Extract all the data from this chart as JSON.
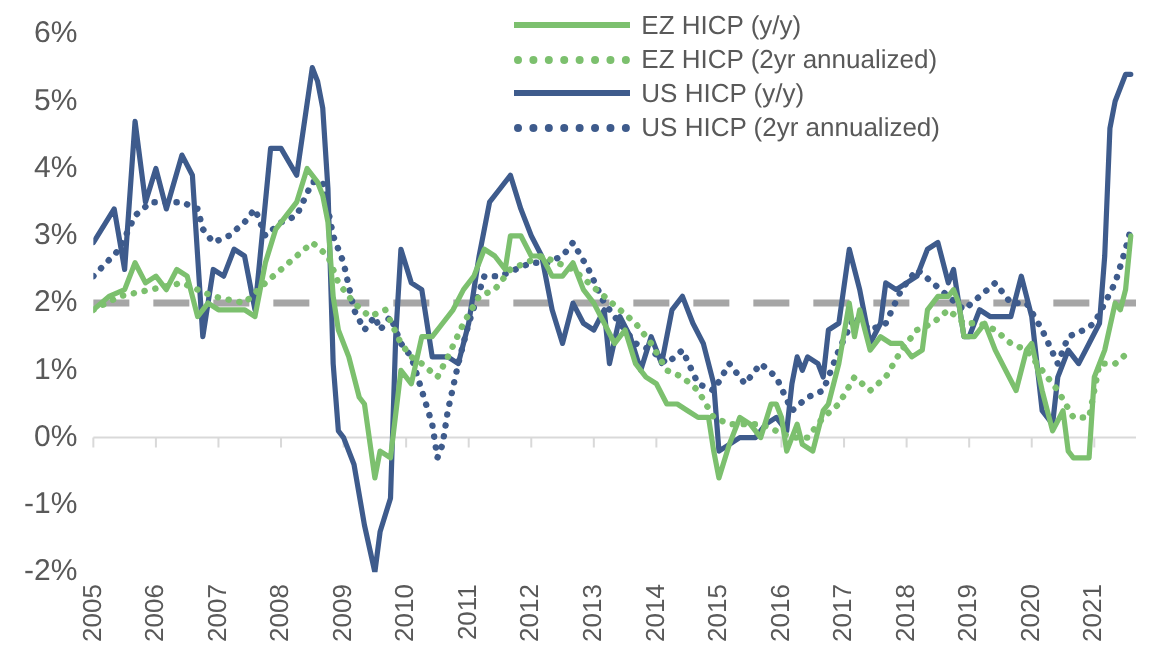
{
  "chart_data": {
    "type": "line",
    "xlim": [
      "2005-01",
      "2021-09"
    ],
    "ylim": [
      -2,
      6
    ],
    "xticks": [
      "2005",
      "2006",
      "2007",
      "2008",
      "2009",
      "2010",
      "2011",
      "2012",
      "2013",
      "2014",
      "2015",
      "2016",
      "2017",
      "2018",
      "2019",
      "2020",
      "2021"
    ],
    "yticks": [
      {
        "value": -2,
        "label": "-2%"
      },
      {
        "value": -1,
        "label": "-1%"
      },
      {
        "value": 0,
        "label": "0%"
      },
      {
        "value": 1,
        "label": "1%"
      },
      {
        "value": 2,
        "label": "2%"
      },
      {
        "value": 3,
        "label": "3%"
      },
      {
        "value": 4,
        "label": "4%"
      },
      {
        "value": 5,
        "label": "5%"
      },
      {
        "value": 6,
        "label": "6%"
      }
    ],
    "grid": false,
    "legend": "top right",
    "marker": "none",
    "ref_lines": [
      {
        "axis": "y",
        "value": 2,
        "color": "#a6a6a6",
        "line_style": "dashed"
      }
    ],
    "series": [
      {
        "name": "EZ HICP (y/y)",
        "color": "#7cc06e",
        "line_style": "solid",
        "x": [
          "2005-01",
          "2005-04",
          "2005-07",
          "2005-09",
          "2005-11",
          "2006-01",
          "2006-03",
          "2006-05",
          "2006-07",
          "2006-09",
          "2006-11",
          "2007-01",
          "2007-04",
          "2007-06",
          "2007-08",
          "2007-10",
          "2007-12",
          "2008-02",
          "2008-04",
          "2008-06",
          "2008-08",
          "2008-09",
          "2008-10",
          "2008-11",
          "2008-12",
          "2009-02",
          "2009-04",
          "2009-05",
          "2009-07",
          "2009-08",
          "2009-10",
          "2009-12",
          "2010-02",
          "2010-04",
          "2010-06",
          "2010-08",
          "2010-10",
          "2010-12",
          "2011-02",
          "2011-04",
          "2011-06",
          "2011-08",
          "2011-09",
          "2011-11",
          "2012-01",
          "2012-03",
          "2012-05",
          "2012-07",
          "2012-09",
          "2012-11",
          "2013-01",
          "2013-03",
          "2013-05",
          "2013-07",
          "2013-09",
          "2013-11",
          "2014-01",
          "2014-03",
          "2014-05",
          "2014-07",
          "2014-09",
          "2014-11",
          "2014-12",
          "2015-01",
          "2015-03",
          "2015-05",
          "2015-07",
          "2015-09",
          "2015-11",
          "2015-12",
          "2016-01",
          "2016-02",
          "2016-04",
          "2016-05",
          "2016-07",
          "2016-09",
          "2016-10",
          "2016-12",
          "2017-02",
          "2017-03",
          "2017-04",
          "2017-06",
          "2017-08",
          "2017-10",
          "2017-12",
          "2018-02",
          "2018-04",
          "2018-05",
          "2018-07",
          "2018-09",
          "2018-10",
          "2018-11",
          "2018-12",
          "2019-02",
          "2019-04",
          "2019-06",
          "2019-08",
          "2019-10",
          "2019-12",
          "2020-01",
          "2020-03",
          "2020-05",
          "2020-07",
          "2020-08",
          "2020-09",
          "2020-12",
          "2021-01",
          "2021-03",
          "2021-05",
          "2021-06",
          "2021-07",
          "2021-08"
        ],
        "values": [
          1.9,
          2.1,
          2.2,
          2.6,
          2.3,
          2.4,
          2.2,
          2.5,
          2.4,
          1.8,
          2.0,
          1.9,
          1.9,
          1.9,
          1.8,
          2.6,
          3.1,
          3.3,
          3.5,
          4.0,
          3.8,
          3.6,
          3.2,
          2.1,
          1.6,
          1.2,
          0.6,
          0.5,
          -0.6,
          -0.2,
          -0.3,
          1.0,
          0.8,
          1.5,
          1.5,
          1.7,
          1.9,
          2.2,
          2.4,
          2.8,
          2.7,
          2.5,
          3.0,
          3.0,
          2.7,
          2.7,
          2.4,
          2.4,
          2.6,
          2.2,
          2.0,
          1.7,
          1.4,
          1.6,
          1.1,
          0.9,
          0.8,
          0.5,
          0.5,
          0.4,
          0.3,
          0.3,
          -0.2,
          -0.6,
          -0.1,
          0.3,
          0.2,
          0.0,
          0.5,
          0.5,
          0.3,
          -0.2,
          0.2,
          -0.1,
          -0.2,
          0.4,
          0.5,
          1.1,
          2.0,
          1.5,
          1.9,
          1.3,
          1.5,
          1.4,
          1.4,
          1.2,
          1.3,
          1.9,
          2.1,
          2.1,
          2.2,
          2.0,
          1.5,
          1.5,
          1.7,
          1.3,
          1.0,
          0.7,
          1.3,
          1.4,
          0.7,
          0.1,
          0.4,
          -0.2,
          -0.3,
          -0.3,
          0.9,
          1.3,
          2.0,
          1.9,
          2.2,
          3.0
        ]
      },
      {
        "name": "EZ HICP (2yr annualized)",
        "color": "#7cc06e",
        "line_style": "dotted",
        "x": [
          "2005-01",
          "2005-06",
          "2005-12",
          "2006-06",
          "2006-12",
          "2007-06",
          "2007-10",
          "2008-04",
          "2008-07",
          "2008-10",
          "2008-12",
          "2009-03",
          "2009-06",
          "2009-09",
          "2009-12",
          "2010-02",
          "2010-04",
          "2010-07",
          "2010-09",
          "2010-12",
          "2011-03",
          "2011-06",
          "2011-09",
          "2011-12",
          "2012-03",
          "2012-06",
          "2012-09",
          "2012-12",
          "2013-03",
          "2013-06",
          "2013-09",
          "2013-12",
          "2014-03",
          "2014-06",
          "2014-09",
          "2014-12",
          "2015-03",
          "2015-06",
          "2015-09",
          "2015-12",
          "2016-03",
          "2016-06",
          "2016-09",
          "2016-12",
          "2017-03",
          "2017-06",
          "2017-09",
          "2017-12",
          "2018-03",
          "2018-06",
          "2018-09",
          "2018-12",
          "2019-03",
          "2019-06",
          "2019-09",
          "2019-12",
          "2020-03",
          "2020-06",
          "2020-09",
          "2020-12",
          "2021-02",
          "2021-05",
          "2021-08"
        ],
        "values": [
          1.9,
          2.1,
          2.2,
          2.3,
          2.1,
          2.0,
          2.3,
          2.7,
          2.9,
          2.7,
          2.3,
          2.0,
          1.8,
          1.9,
          1.4,
          1.2,
          1.1,
          0.9,
          1.2,
          1.7,
          2.1,
          2.2,
          2.5,
          2.6,
          2.7,
          2.6,
          2.5,
          2.3,
          2.1,
          1.9,
          1.7,
          1.4,
          1.0,
          0.9,
          0.7,
          0.3,
          0.2,
          0.2,
          0.2,
          0.1,
          0.0,
          0.0,
          0.3,
          0.5,
          0.9,
          0.7,
          0.9,
          1.3,
          1.6,
          1.7,
          1.9,
          1.7,
          1.7,
          1.6,
          1.4,
          1.3,
          1.0,
          0.7,
          0.3,
          0.3,
          1.1,
          1.1,
          1.3
        ]
      },
      {
        "name": "US HICP (y/y)",
        "color": "#3e5b8c",
        "line_style": "solid",
        "x": [
          "2005-01",
          "2005-05",
          "2005-07",
          "2005-09",
          "2005-11",
          "2006-01",
          "2006-03",
          "2006-06",
          "2006-08",
          "2006-10",
          "2006-12",
          "2007-02",
          "2007-04",
          "2007-06",
          "2007-08",
          "2007-10",
          "2007-11",
          "2008-01",
          "2008-04",
          "2008-07",
          "2008-08",
          "2008-09",
          "2008-10",
          "2008-11",
          "2008-12",
          "2009-01",
          "2009-03",
          "2009-05",
          "2009-07",
          "2009-08",
          "2009-10",
          "2009-11",
          "2009-12",
          "2010-02",
          "2010-04",
          "2010-06",
          "2010-09",
          "2010-11",
          "2011-01",
          "2011-03",
          "2011-05",
          "2011-07",
          "2011-09",
          "2011-11",
          "2012-01",
          "2012-03",
          "2012-05",
          "2012-07",
          "2012-09",
          "2012-11",
          "2013-01",
          "2013-03",
          "2013-04",
          "2013-06",
          "2013-08",
          "2013-10",
          "2013-12",
          "2014-02",
          "2014-04",
          "2014-06",
          "2014-08",
          "2014-10",
          "2014-12",
          "2015-01",
          "2015-03",
          "2015-05",
          "2015-08",
          "2015-10",
          "2015-12",
          "2016-02",
          "2016-03",
          "2016-04",
          "2016-05",
          "2016-06",
          "2016-08",
          "2016-09",
          "2016-10",
          "2016-12",
          "2017-02",
          "2017-04",
          "2017-06",
          "2017-08",
          "2017-09",
          "2017-11",
          "2018-01",
          "2018-03",
          "2018-05",
          "2018-07",
          "2018-09",
          "2018-10",
          "2018-12",
          "2019-01",
          "2019-03",
          "2019-05",
          "2019-07",
          "2019-09",
          "2019-11",
          "2020-01",
          "2020-03",
          "2020-05",
          "2020-06",
          "2020-08",
          "2020-10",
          "2020-12",
          "2021-02",
          "2021-03",
          "2021-04",
          "2021-05",
          "2021-07",
          "2021-08"
        ],
        "values": [
          2.9,
          3.4,
          2.5,
          4.7,
          3.5,
          4.0,
          3.4,
          4.2,
          3.9,
          1.5,
          2.5,
          2.4,
          2.8,
          2.7,
          1.9,
          3.5,
          4.3,
          4.3,
          3.9,
          5.5,
          5.3,
          4.9,
          3.7,
          1.1,
          0.1,
          0.0,
          -0.4,
          -1.3,
          -2.0,
          -1.4,
          -0.9,
          1.5,
          2.8,
          2.3,
          2.2,
          1.2,
          1.2,
          1.1,
          1.7,
          2.7,
          3.5,
          3.7,
          3.9,
          3.4,
          3.0,
          2.7,
          1.9,
          1.4,
          2.0,
          1.7,
          1.6,
          1.9,
          1.1,
          1.8,
          1.5,
          1.0,
          1.5,
          1.1,
          1.9,
          2.1,
          1.7,
          1.4,
          0.8,
          -0.2,
          -0.1,
          0.0,
          0.0,
          0.2,
          0.3,
          0.1,
          0.8,
          1.2,
          1.0,
          1.2,
          1.1,
          0.9,
          1.6,
          1.7,
          2.8,
          2.2,
          1.4,
          1.7,
          2.3,
          2.2,
          2.3,
          2.4,
          2.8,
          2.9,
          2.3,
          2.5,
          1.5,
          1.5,
          1.9,
          1.8,
          1.8,
          1.8,
          2.4,
          1.8,
          0.4,
          0.2,
          0.9,
          1.3,
          1.1,
          1.4,
          1.7,
          2.7,
          4.6,
          5.0,
          5.4,
          5.4
        ]
      },
      {
        "name": "US HICP (2yr annualized)",
        "color": "#3e5b8c",
        "line_style": "dotted",
        "x": [
          "2005-01",
          "2005-06",
          "2005-09",
          "2005-12",
          "2006-06",
          "2006-09",
          "2006-10",
          "2006-12",
          "2007-03",
          "2007-06",
          "2007-08",
          "2007-10",
          "2008-01",
          "2008-04",
          "2008-07",
          "2008-09",
          "2008-11",
          "2009-01",
          "2009-03",
          "2009-05",
          "2009-07",
          "2009-08",
          "2009-10",
          "2009-12",
          "2010-02",
          "2010-04",
          "2010-06",
          "2010-07",
          "2010-08",
          "2010-09",
          "2010-11",
          "2011-01",
          "2011-04",
          "2011-07",
          "2011-10",
          "2012-01",
          "2012-04",
          "2012-07",
          "2012-09",
          "2012-12",
          "2013-03",
          "2013-06",
          "2013-09",
          "2013-12",
          "2014-03",
          "2014-06",
          "2014-09",
          "2014-12",
          "2015-03",
          "2015-06",
          "2015-09",
          "2015-12",
          "2016-03",
          "2016-06",
          "2016-09",
          "2016-12",
          "2017-03",
          "2017-06",
          "2017-09",
          "2017-12",
          "2018-03",
          "2018-06",
          "2018-09",
          "2018-12",
          "2019-03",
          "2019-06",
          "2019-09",
          "2019-12",
          "2020-03",
          "2020-06",
          "2020-08",
          "2020-11",
          "2021-01",
          "2021-03",
          "2021-05",
          "2021-07",
          "2021-08"
        ],
        "values": [
          2.4,
          2.8,
          3.3,
          3.5,
          3.5,
          3.4,
          3.1,
          2.9,
          3.0,
          3.2,
          3.4,
          3.0,
          3.2,
          3.3,
          3.8,
          3.8,
          3.0,
          2.6,
          1.9,
          1.6,
          1.8,
          1.6,
          1.8,
          1.4,
          1.2,
          0.7,
          0.2,
          -0.3,
          -0.1,
          0.4,
          1.1,
          1.7,
          2.4,
          2.4,
          2.5,
          2.6,
          2.6,
          2.7,
          2.9,
          2.5,
          2.0,
          1.7,
          1.4,
          1.3,
          1.1,
          1.3,
          0.8,
          0.7,
          1.1,
          0.8,
          1.1,
          0.9,
          0.4,
          0.6,
          0.7,
          1.3,
          1.8,
          1.6,
          1.7,
          2.2,
          2.5,
          2.3,
          2.1,
          1.9,
          2.1,
          2.3,
          2.0,
          2.0,
          1.6,
          1.1,
          1.5,
          1.6,
          1.7,
          2.0,
          2.3,
          2.8,
          3.1
        ]
      }
    ]
  }
}
